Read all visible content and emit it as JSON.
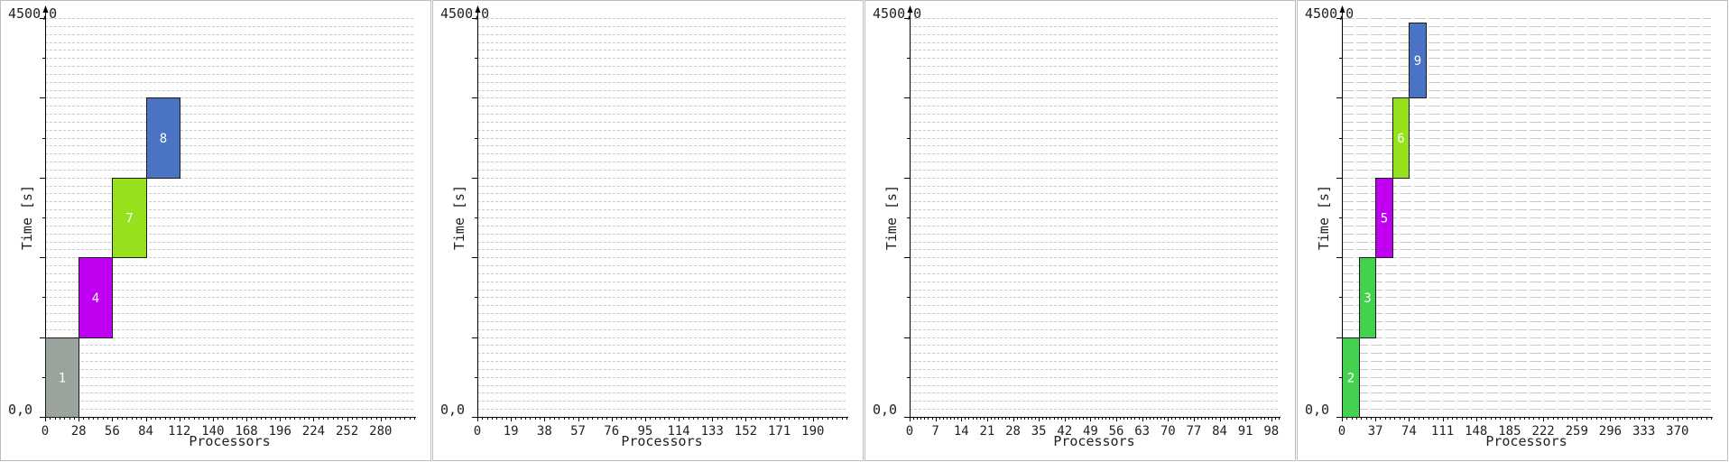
{
  "chart_data": [
    {
      "type": "gantt",
      "xlabel": "Processors",
      "ylabel": "Time [s]",
      "y_top_label": "4500,0",
      "y_bottom_label": "0,0",
      "xlim": [
        0,
        308
      ],
      "ylim": [
        0,
        4500
      ],
      "x_ticks": [
        "0",
        "28",
        "56",
        "84",
        "112",
        "140",
        "168",
        "196",
        "224",
        "252",
        "280"
      ],
      "x_tick_step": 28,
      "grid_dense": false,
      "jobs": [
        {
          "label": "1",
          "proc_start": 0,
          "proc_end": 28,
          "t_start": 0,
          "t_end": 900,
          "color": "#9aa49d"
        },
        {
          "label": "4",
          "proc_start": 28,
          "proc_end": 56,
          "t_start": 900,
          "t_end": 1800,
          "color": "#c000f0"
        },
        {
          "label": "7",
          "proc_start": 56,
          "proc_end": 84,
          "t_start": 1800,
          "t_end": 2700,
          "color": "#95e21c"
        },
        {
          "label": "8",
          "proc_start": 84,
          "proc_end": 112,
          "t_start": 2700,
          "t_end": 3600,
          "color": "#4a74c3"
        }
      ]
    },
    {
      "type": "gantt",
      "xlabel": "Processors",
      "ylabel": "Time [s]",
      "y_top_label": "4500,0",
      "y_bottom_label": "0,0",
      "xlim": [
        0,
        209
      ],
      "ylim": [
        0,
        4500
      ],
      "x_ticks": [
        "0",
        "19",
        "38",
        "57",
        "76",
        "95",
        "114",
        "133",
        "152",
        "171",
        "190"
      ],
      "x_tick_step": 19,
      "grid_dense": false,
      "jobs": []
    },
    {
      "type": "gantt",
      "xlabel": "Processors",
      "ylabel": "Time [s]",
      "y_top_label": "4500,0",
      "y_bottom_label": "0,0",
      "xlim": [
        0,
        100
      ],
      "ylim": [
        0,
        4500
      ],
      "x_ticks": [
        "0",
        "7",
        "14",
        "21",
        "28",
        "35",
        "42",
        "49",
        "56",
        "63",
        "70",
        "77",
        "84",
        "91",
        "98"
      ],
      "x_tick_step": 7,
      "grid_dense": false,
      "jobs": []
    },
    {
      "type": "gantt",
      "xlabel": "Processors",
      "ylabel": "Time [s]",
      "y_top_label": "4500,0",
      "y_bottom_label": "0,0",
      "xlim": [
        0,
        407
      ],
      "ylim": [
        0,
        4500
      ],
      "x_ticks": [
        "0",
        "37",
        "74",
        "111",
        "148",
        "185",
        "222",
        "259",
        "296",
        "333",
        "370"
      ],
      "x_tick_step": 37,
      "grid_dense": true,
      "jobs": [
        {
          "label": "2",
          "proc_start": 0,
          "proc_end": 18.5,
          "t_start": 0,
          "t_end": 900,
          "color": "#44d14f"
        },
        {
          "label": "3",
          "proc_start": 18.5,
          "proc_end": 37,
          "t_start": 900,
          "t_end": 1800,
          "color": "#44d14f"
        },
        {
          "label": "5",
          "proc_start": 37,
          "proc_end": 55.5,
          "t_start": 1800,
          "t_end": 2700,
          "color": "#c000f0"
        },
        {
          "label": "6",
          "proc_start": 55.5,
          "proc_end": 74,
          "t_start": 2700,
          "t_end": 3600,
          "color": "#95e21c"
        },
        {
          "label": "9",
          "proc_start": 74,
          "proc_end": 92.5,
          "t_start": 3600,
          "t_end": 4450,
          "color": "#4a74c3"
        }
      ]
    }
  ]
}
